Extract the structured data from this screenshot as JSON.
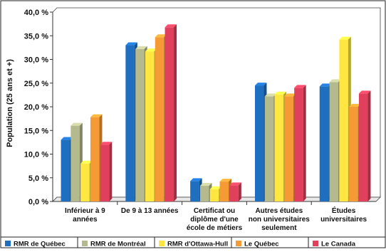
{
  "chart_data": {
    "type": "bar",
    "title": "",
    "xlabel": "",
    "ylabel": "Population (25 ans et +)",
    "ylim": [
      0,
      40
    ],
    "y_ticks": [
      "0,0 %",
      "5,0 %",
      "10,0 %",
      "15,0 %",
      "20,0 %",
      "25,0 %",
      "30,0 %",
      "35,0 %",
      "40,0 %"
    ],
    "grid": false,
    "legend_position": "bottom",
    "categories": [
      [
        "Inférieur à 9",
        "années"
      ],
      [
        "De 9 à 13 années"
      ],
      [
        "Certificat ou",
        "diplôme d'une",
        "école de métiers"
      ],
      [
        "Autres études",
        "non universitaires",
        "seulement"
      ],
      [
        "Études",
        "universitaires"
      ]
    ],
    "series": [
      {
        "name": "RMR de Québec",
        "color": "#1f6fc0",
        "values": [
          13.0,
          33.0,
          4.3,
          24.5,
          24.3
        ]
      },
      {
        "name": "RMR de Montréal",
        "color": "#b5b98e",
        "values": [
          16.0,
          32.2,
          3.3,
          22.2,
          25.2
        ]
      },
      {
        "name": "RMR d'Ottawa-Hull",
        "color": "#ffe640",
        "values": [
          8.0,
          31.7,
          2.6,
          22.6,
          34.2
        ]
      },
      {
        "name": "Le Québec",
        "color": "#f59a34",
        "values": [
          17.8,
          34.7,
          4.2,
          22.2,
          20.0
        ]
      },
      {
        "name": "Le Canada",
        "color": "#e1405c",
        "values": [
          12.0,
          36.8,
          3.4,
          24.0,
          22.8
        ]
      }
    ]
  }
}
